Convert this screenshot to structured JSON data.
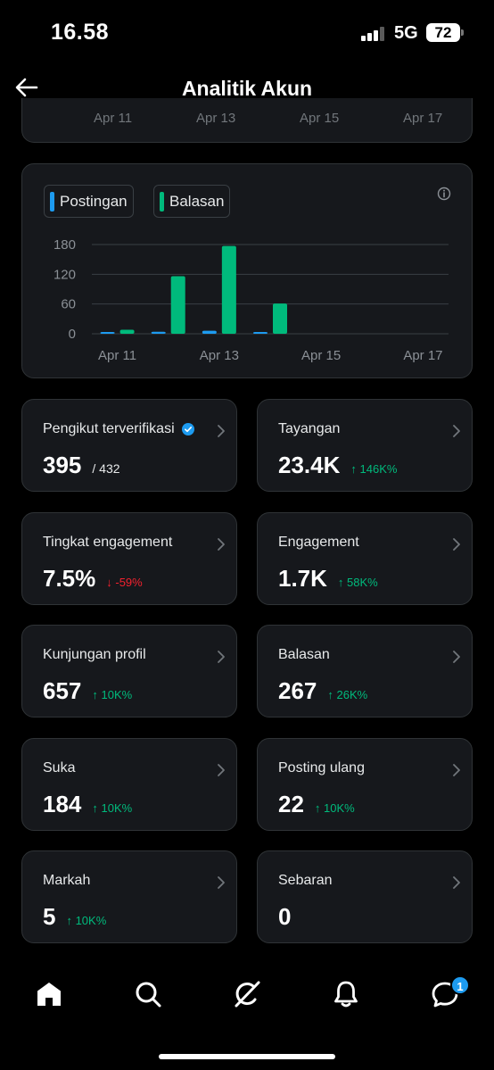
{
  "status_bar": {
    "time": "16.58",
    "network": "5G",
    "battery": "72"
  },
  "header": {
    "title": "Analitik Akun"
  },
  "top_chart_axis": [
    "Apr 11",
    "Apr 13",
    "Apr 15",
    "Apr 17"
  ],
  "chart_data": {
    "type": "bar",
    "categories": [
      "Apr 11",
      "Apr 12",
      "Apr 13",
      "Apr 14",
      "Apr 15",
      "Apr 16",
      "Apr 17"
    ],
    "x_tick_labels": [
      "Apr 11",
      "Apr 13",
      "Apr 15",
      "Apr 17"
    ],
    "y_ticks": [
      "180",
      "120",
      "60",
      "0"
    ],
    "ylim": [
      0,
      180
    ],
    "grid": true,
    "legend_placement": "top-left",
    "series": [
      {
        "name": "Postingan",
        "color": "#1d9bf0",
        "values": [
          2,
          4,
          6,
          3,
          0,
          0,
          0
        ]
      },
      {
        "name": "Balasan",
        "color": "#00ba7c",
        "values": [
          8,
          116,
          177,
          61,
          0,
          0,
          0
        ]
      }
    ]
  },
  "metrics": [
    {
      "id": "pengikut",
      "label": "Pengikut terverifikasi",
      "verified": true,
      "value": "395",
      "sub": "/ 432",
      "change": "",
      "direction": ""
    },
    {
      "id": "tayangan",
      "label": "Tayangan",
      "verified": false,
      "value": "23.4K",
      "sub": "",
      "change": "↑ 146K%",
      "direction": "up"
    },
    {
      "id": "tingkat-engagement",
      "label": "Tingkat engagement",
      "verified": false,
      "value": "7.5%",
      "sub": "",
      "change": "↓ -59%",
      "direction": "down"
    },
    {
      "id": "engagement",
      "label": "Engagement",
      "verified": false,
      "value": "1.7K",
      "sub": "",
      "change": "↑ 58K%",
      "direction": "up"
    },
    {
      "id": "kunjungan-profil",
      "label": "Kunjungan profil",
      "verified": false,
      "value": "657",
      "sub": "",
      "change": "↑ 10K%",
      "direction": "up"
    },
    {
      "id": "balasan",
      "label": "Balasan",
      "verified": false,
      "value": "267",
      "sub": "",
      "change": "↑ 26K%",
      "direction": "up"
    },
    {
      "id": "suka",
      "label": "Suka",
      "verified": false,
      "value": "184",
      "sub": "",
      "change": "↑ 10K%",
      "direction": "up"
    },
    {
      "id": "posting-ulang",
      "label": "Posting ulang",
      "verified": false,
      "value": "22",
      "sub": "",
      "change": "↑ 10K%",
      "direction": "up"
    },
    {
      "id": "markah",
      "label": "Markah",
      "verified": false,
      "value": "5",
      "sub": "",
      "change": "↑ 10K%",
      "direction": "up"
    },
    {
      "id": "sebaran",
      "label": "Sebaran",
      "verified": false,
      "value": "0",
      "sub": "",
      "change": "",
      "direction": ""
    }
  ],
  "nav": {
    "items": [
      {
        "id": "home",
        "icon": "home-icon"
      },
      {
        "id": "search",
        "icon": "search-icon"
      },
      {
        "id": "grok",
        "icon": "grok-icon"
      },
      {
        "id": "notifications",
        "icon": "bell-icon"
      },
      {
        "id": "messages",
        "icon": "messages-icon"
      }
    ],
    "messages_badge": "1"
  },
  "colors": {
    "background": "#000000",
    "card": "#16181c",
    "border": "#2f3336",
    "accent_blue": "#1d9bf0",
    "accent_green": "#00ba7c",
    "negative": "#f4212e"
  }
}
